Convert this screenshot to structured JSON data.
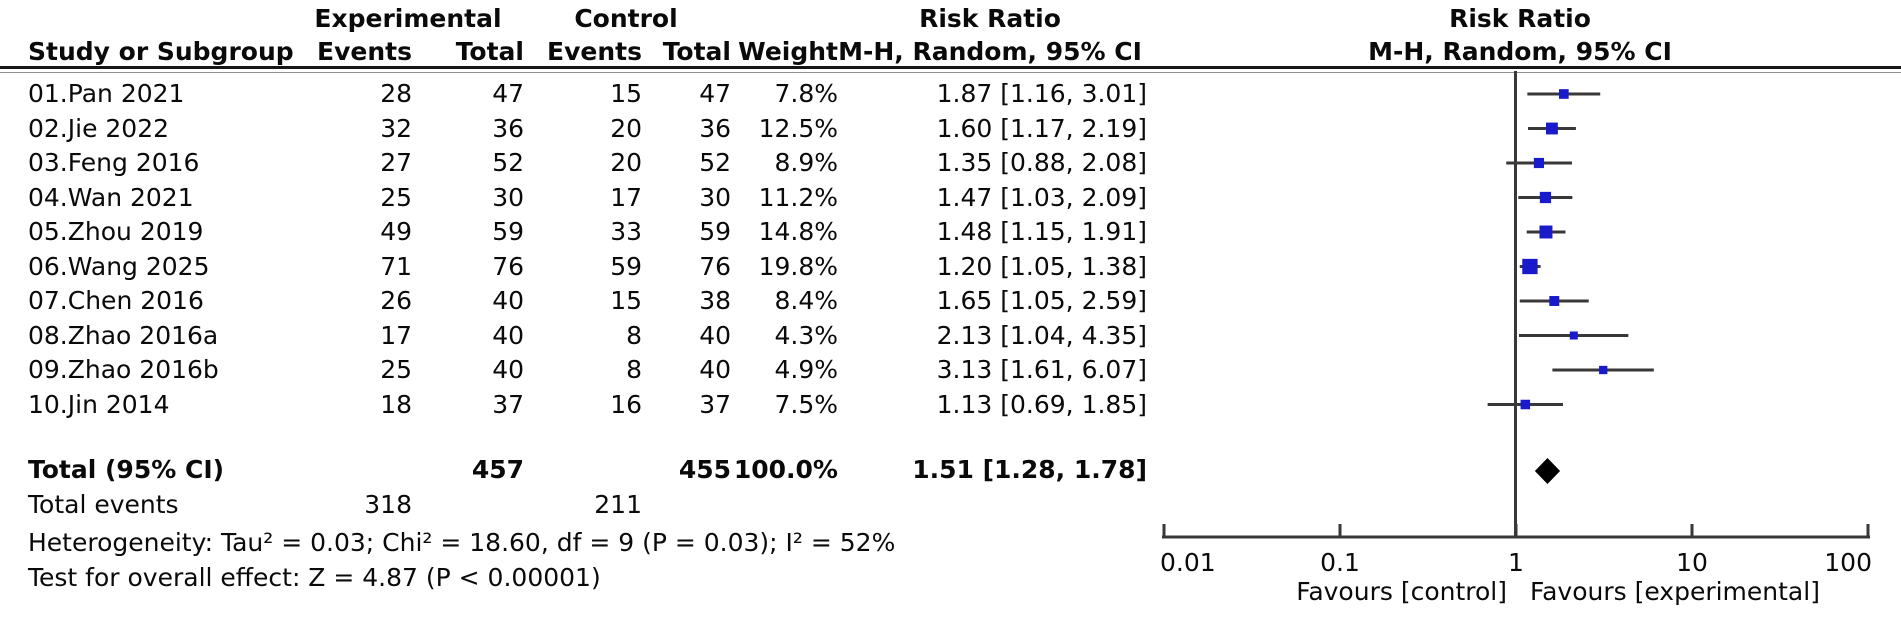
{
  "header": {
    "experimental": "Experimental",
    "control": "Control",
    "study_col": "Study or Subgroup",
    "events_col": "Events",
    "total_col": "Total",
    "weight_col": "Weight",
    "risk_ratio": "Risk Ratio",
    "method": "M-H, Random, 95% CI"
  },
  "colors": {
    "marker_blue": "#1a1acd",
    "line": "#383838",
    "diamond": "#000000",
    "text": "#0a0a0a"
  },
  "chart_data": {
    "type": "forest",
    "effect_measure": "Risk Ratio",
    "model": "M-H, Random, 95% CI",
    "x_scale": "log",
    "xlim": [
      0.01,
      100
    ],
    "studies": [
      {
        "name": "01.Pan 2021",
        "exp_events": 28,
        "exp_total": 47,
        "ctrl_events": 15,
        "ctrl_total": 47,
        "weight": "7.8%",
        "weight_pct": 7.8,
        "rr": 1.87,
        "ci_low": 1.16,
        "ci_high": 3.01,
        "ci_text": "1.87 [1.16, 3.01]"
      },
      {
        "name": "02.Jie 2022",
        "exp_events": 32,
        "exp_total": 36,
        "ctrl_events": 20,
        "ctrl_total": 36,
        "weight": "12.5%",
        "weight_pct": 12.5,
        "rr": 1.6,
        "ci_low": 1.17,
        "ci_high": 2.19,
        "ci_text": "1.60 [1.17, 2.19]"
      },
      {
        "name": "03.Feng 2016",
        "exp_events": 27,
        "exp_total": 52,
        "ctrl_events": 20,
        "ctrl_total": 52,
        "weight": "8.9%",
        "weight_pct": 8.9,
        "rr": 1.35,
        "ci_low": 0.88,
        "ci_high": 2.08,
        "ci_text": "1.35 [0.88, 2.08]"
      },
      {
        "name": "04.Wan 2021",
        "exp_events": 25,
        "exp_total": 30,
        "ctrl_events": 17,
        "ctrl_total": 30,
        "weight": "11.2%",
        "weight_pct": 11.2,
        "rr": 1.47,
        "ci_low": 1.03,
        "ci_high": 2.09,
        "ci_text": "1.47 [1.03, 2.09]"
      },
      {
        "name": "05.Zhou 2019",
        "exp_events": 49,
        "exp_total": 59,
        "ctrl_events": 33,
        "ctrl_total": 59,
        "weight": "14.8%",
        "weight_pct": 14.8,
        "rr": 1.48,
        "ci_low": 1.15,
        "ci_high": 1.91,
        "ci_text": "1.48 [1.15, 1.91]"
      },
      {
        "name": "06.Wang 2025",
        "exp_events": 71,
        "exp_total": 76,
        "ctrl_events": 59,
        "ctrl_total": 76,
        "weight": "19.8%",
        "weight_pct": 19.8,
        "rr": 1.2,
        "ci_low": 1.05,
        "ci_high": 1.38,
        "ci_text": "1.20 [1.05, 1.38]"
      },
      {
        "name": "07.Chen 2016",
        "exp_events": 26,
        "exp_total": 40,
        "ctrl_events": 15,
        "ctrl_total": 38,
        "weight": "8.4%",
        "weight_pct": 8.4,
        "rr": 1.65,
        "ci_low": 1.05,
        "ci_high": 2.59,
        "ci_text": "1.65 [1.05, 2.59]"
      },
      {
        "name": "08.Zhao 2016a",
        "exp_events": 17,
        "exp_total": 40,
        "ctrl_events": 8,
        "ctrl_total": 40,
        "weight": "4.3%",
        "weight_pct": 4.3,
        "rr": 2.13,
        "ci_low": 1.04,
        "ci_high": 4.35,
        "ci_text": "2.13 [1.04, 4.35]"
      },
      {
        "name": "09.Zhao 2016b",
        "exp_events": 25,
        "exp_total": 40,
        "ctrl_events": 8,
        "ctrl_total": 40,
        "weight": "4.9%",
        "weight_pct": 4.9,
        "rr": 3.13,
        "ci_low": 1.61,
        "ci_high": 6.07,
        "ci_text": "3.13 [1.61, 6.07]"
      },
      {
        "name": "10.Jin 2014",
        "exp_events": 18,
        "exp_total": 37,
        "ctrl_events": 16,
        "ctrl_total": 37,
        "weight": "7.5%",
        "weight_pct": 7.5,
        "rr": 1.13,
        "ci_low": 0.69,
        "ci_high": 1.85,
        "ci_text": "1.13 [0.69, 1.85]"
      }
    ],
    "total": {
      "label": "Total (95% CI)",
      "exp_total": 457,
      "ctrl_total": 455,
      "weight": "100.0%",
      "rr": 1.51,
      "ci_low": 1.28,
      "ci_high": 1.78,
      "ci_text": "1.51 [1.28, 1.78]"
    },
    "total_events": {
      "label": "Total events",
      "experimental": 318,
      "control": 211
    },
    "heterogeneity": "Heterogeneity: Tau² = 0.03; Chi² = 18.60, df = 9 (P = 0.03); I² = 52%",
    "overall_effect": "Test for overall effect: Z = 4.87 (P < 0.00001)",
    "axis": {
      "ticks": [
        {
          "label": "0.01",
          "value": 0.01
        },
        {
          "label": "0.1",
          "value": 0.1
        },
        {
          "label": "1",
          "value": 1
        },
        {
          "label": "10",
          "value": 10
        },
        {
          "label": "100",
          "value": 100
        }
      ],
      "favours_left": "Favours [control]",
      "favours_right": "Favours [experimental]"
    }
  }
}
